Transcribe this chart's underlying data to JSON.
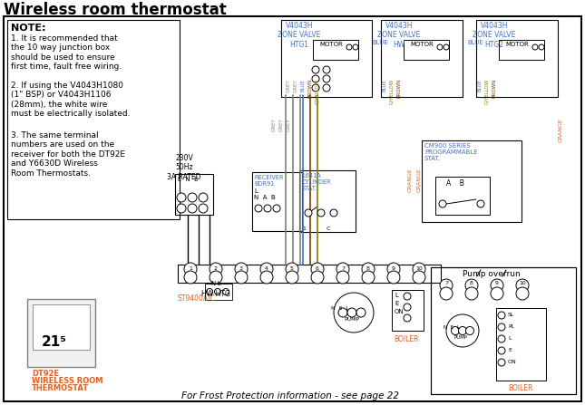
{
  "title": "Wireless room thermostat",
  "bg_color": "#ffffff",
  "border_color": "#000000",
  "note_text": "NOTE:",
  "note1": "1. It is recommended that\nthe 10 way junction box\nshould be used to ensure\nfirst time, fault free wiring.",
  "note2": "2. If using the V4043H1080\n(1\" BSP) or V4043H1106\n(28mm), the white wire\nmust be electrically isolated.",
  "note3": "3. The same terminal\nnumbers are used on the\nreceiver for both the DT92E\nand Y6630D Wireless\nRoom Thermostats.",
  "frost_text": "For Frost Protection information - see page 22",
  "device_label1": "DT92E",
  "device_label2": "WIRELESS ROOM",
  "device_label3": "THERMOSTAT",
  "pump_overrun": "Pump overrun",
  "boiler_label": "BOILER",
  "blue_color": "#4472c4",
  "orange_color": "#e06020",
  "brown_color": "#7b3f00",
  "grey_color": "#808080",
  "line_color": "#404040",
  "text_color": "#000000"
}
